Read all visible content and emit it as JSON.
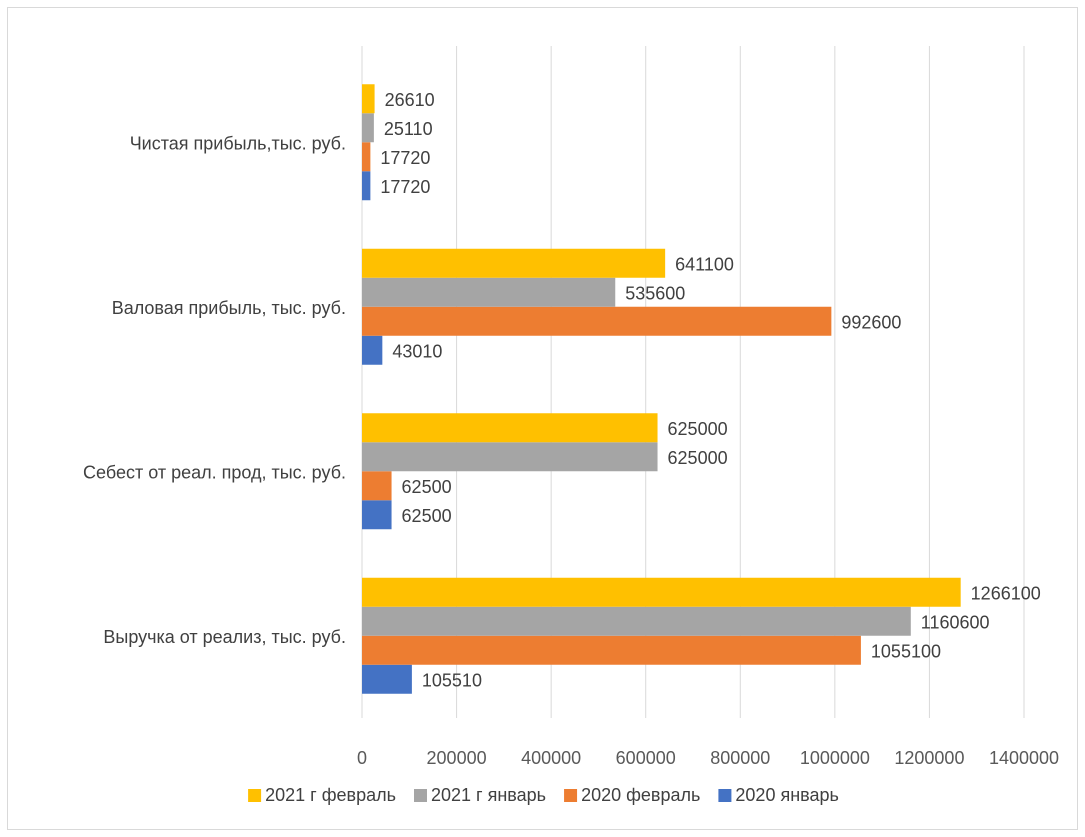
{
  "chart_data": {
    "type": "bar",
    "orientation": "horizontal",
    "title": "",
    "xlabel": "",
    "ylabel": "",
    "categories": [
      "Выручка от реализ, тыс. руб.",
      "Себест от реал. прод, тыс. руб.",
      "Валовая прибыль, тыс. руб.",
      "Чистая прибыль,тыс. руб."
    ],
    "series": [
      {
        "name": "2020 январь",
        "color": "#4472c4",
        "values": [
          105510,
          62500,
          43010,
          17720
        ]
      },
      {
        "name": "2020 февраль",
        "color": "#ed7d31",
        "values": [
          1055100,
          62500,
          992600,
          17720
        ]
      },
      {
        "name": "2021 г январь",
        "color": "#a5a5a5",
        "values": [
          1160600,
          625000,
          535600,
          25110
        ]
      },
      {
        "name": "2021 г февраль",
        "color": "#ffc000",
        "values": [
          1266100,
          625000,
          641100,
          26610
        ]
      }
    ],
    "xlim": [
      0,
      1400000
    ],
    "x_ticks": [
      "0",
      "200000",
      "400000",
      "600000",
      "800000",
      "1000000",
      "1200000",
      "1400000"
    ],
    "grid": "vertical",
    "legend": "bottom",
    "legend_order": [
      "2021 г февраль",
      "2021 г январь",
      "2020 февраль",
      "2020 январь"
    ],
    "data_labels": true
  }
}
